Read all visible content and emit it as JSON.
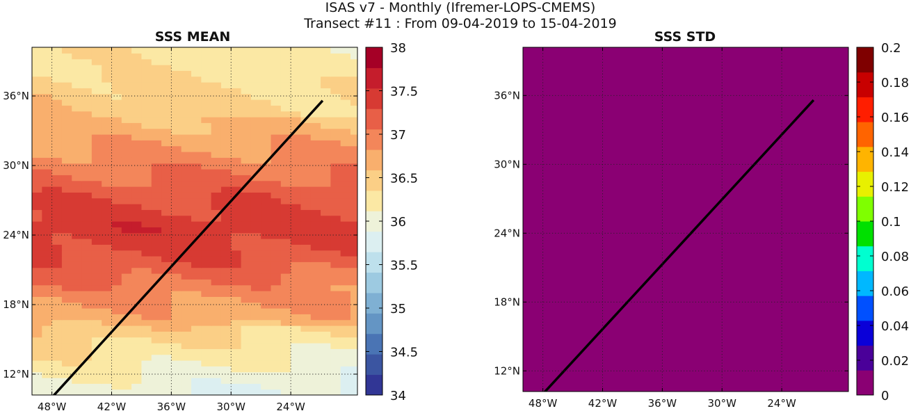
{
  "figure": {
    "suptitle_line1": "ISAS v7 - Monthly (Ifremer-LOPS-CMEMS)",
    "suptitle_line2": "Transect #11 : From 09-04-2019 to 15-04-2019"
  },
  "chart_data": [
    {
      "type": "heatmap",
      "title": "SSS MEAN",
      "lon_range": [
        -50,
        5
      ],
      "lat_range": [
        10,
        40
      ],
      "x_ticks": [
        -48,
        -42,
        -36,
        -30,
        -24
      ],
      "x_tick_labels": [
        "48°W",
        "42°W",
        "36°W",
        "30°W",
        "24°W"
      ],
      "y_ticks": [
        12,
        18,
        24,
        30,
        36
      ],
      "y_tick_labels": [
        "12°N",
        "18°N",
        "24°N",
        "30°N",
        "36°N"
      ],
      "grid": true,
      "colorbar": {
        "min": 34,
        "max": 38,
        "step": 0.25,
        "tick_values": [
          34,
          34.5,
          35,
          35.5,
          36,
          36.5,
          37,
          37.5,
          38
        ],
        "tick_labels": [
          "34",
          "34.5",
          "35",
          "35.5",
          "36",
          "36.5",
          "37",
          "37.5",
          "38"
        ],
        "colors": [
          "#313695",
          "#3b55a1",
          "#4a74b4",
          "#6495c4",
          "#7fb0d3",
          "#9dcae1",
          "#bee0ec",
          "#dceff1",
          "#eef2d9",
          "#fbe8a4",
          "#fbcf86",
          "#f9af6d",
          "#f3865a",
          "#e85f47",
          "#d73a33",
          "#c51d2c",
          "#a50026"
        ]
      },
      "transect": {
        "start": [
          -48.2,
          9.8
        ],
        "end": [
          -20.8,
          35.6
        ]
      },
      "field_bands": [
        {
          "lat": 38.5,
          "sss": 36.35
        },
        {
          "lat": 36.5,
          "sss": 36.5
        },
        {
          "lat": 34.5,
          "sss": 36.55
        },
        {
          "lat": 32.5,
          "sss": 36.7
        },
        {
          "lat": 30.5,
          "sss": 36.9
        },
        {
          "lat": 28.5,
          "sss": 37.1
        },
        {
          "lat": 26.5,
          "sss": 37.3
        },
        {
          "lat": 24.5,
          "sss": 37.45
        },
        {
          "lat": 22.5,
          "sss": 37.35
        },
        {
          "lat": 20.5,
          "sss": 37.15
        },
        {
          "lat": 18.5,
          "sss": 36.9
        },
        {
          "lat": 16.5,
          "sss": 36.7
        },
        {
          "lat": 14.5,
          "sss": 36.45
        },
        {
          "lat": 12.5,
          "sss": 36.25
        },
        {
          "lat": 10.5,
          "sss": 36.05
        }
      ]
    },
    {
      "type": "heatmap",
      "title": "SSS STD",
      "lon_range": [
        -50,
        5
      ],
      "lat_range": [
        10,
        40
      ],
      "x_ticks": [
        -48,
        -42,
        -36,
        -30,
        -24
      ],
      "x_tick_labels": [
        "48°W",
        "42°W",
        "36°W",
        "30°W",
        "24°W"
      ],
      "y_ticks": [
        12,
        18,
        24,
        30,
        36
      ],
      "y_tick_labels": [
        "12°N",
        "18°N",
        "24°N",
        "30°N",
        "36°N"
      ],
      "grid": true,
      "field_value": 0,
      "field_color": "#8a0073",
      "colorbar": {
        "min": 0,
        "max": 0.2,
        "step": 0.02,
        "tick_values": [
          0,
          0.02,
          0.04,
          0.06,
          0.08,
          0.1,
          0.12,
          0.14,
          0.16,
          0.18,
          0.2
        ],
        "tick_labels": [
          "0",
          "0.02",
          "0.04",
          "0.06",
          "0.08",
          "0.1",
          "0.12",
          "0.14",
          "0.16",
          "0.18",
          "0.2"
        ],
        "colors": [
          "#8a0073",
          "#4a0099",
          "#0a00d8",
          "#0050ff",
          "#00b8ff",
          "#00ffd0",
          "#00e000",
          "#7fff00",
          "#e8f000",
          "#ffb400",
          "#ff6400",
          "#ff1e00",
          "#c80000",
          "#7f0000"
        ]
      },
      "transect": {
        "start": [
          -48.2,
          9.8
        ],
        "end": [
          -20.8,
          35.6
        ]
      }
    }
  ]
}
